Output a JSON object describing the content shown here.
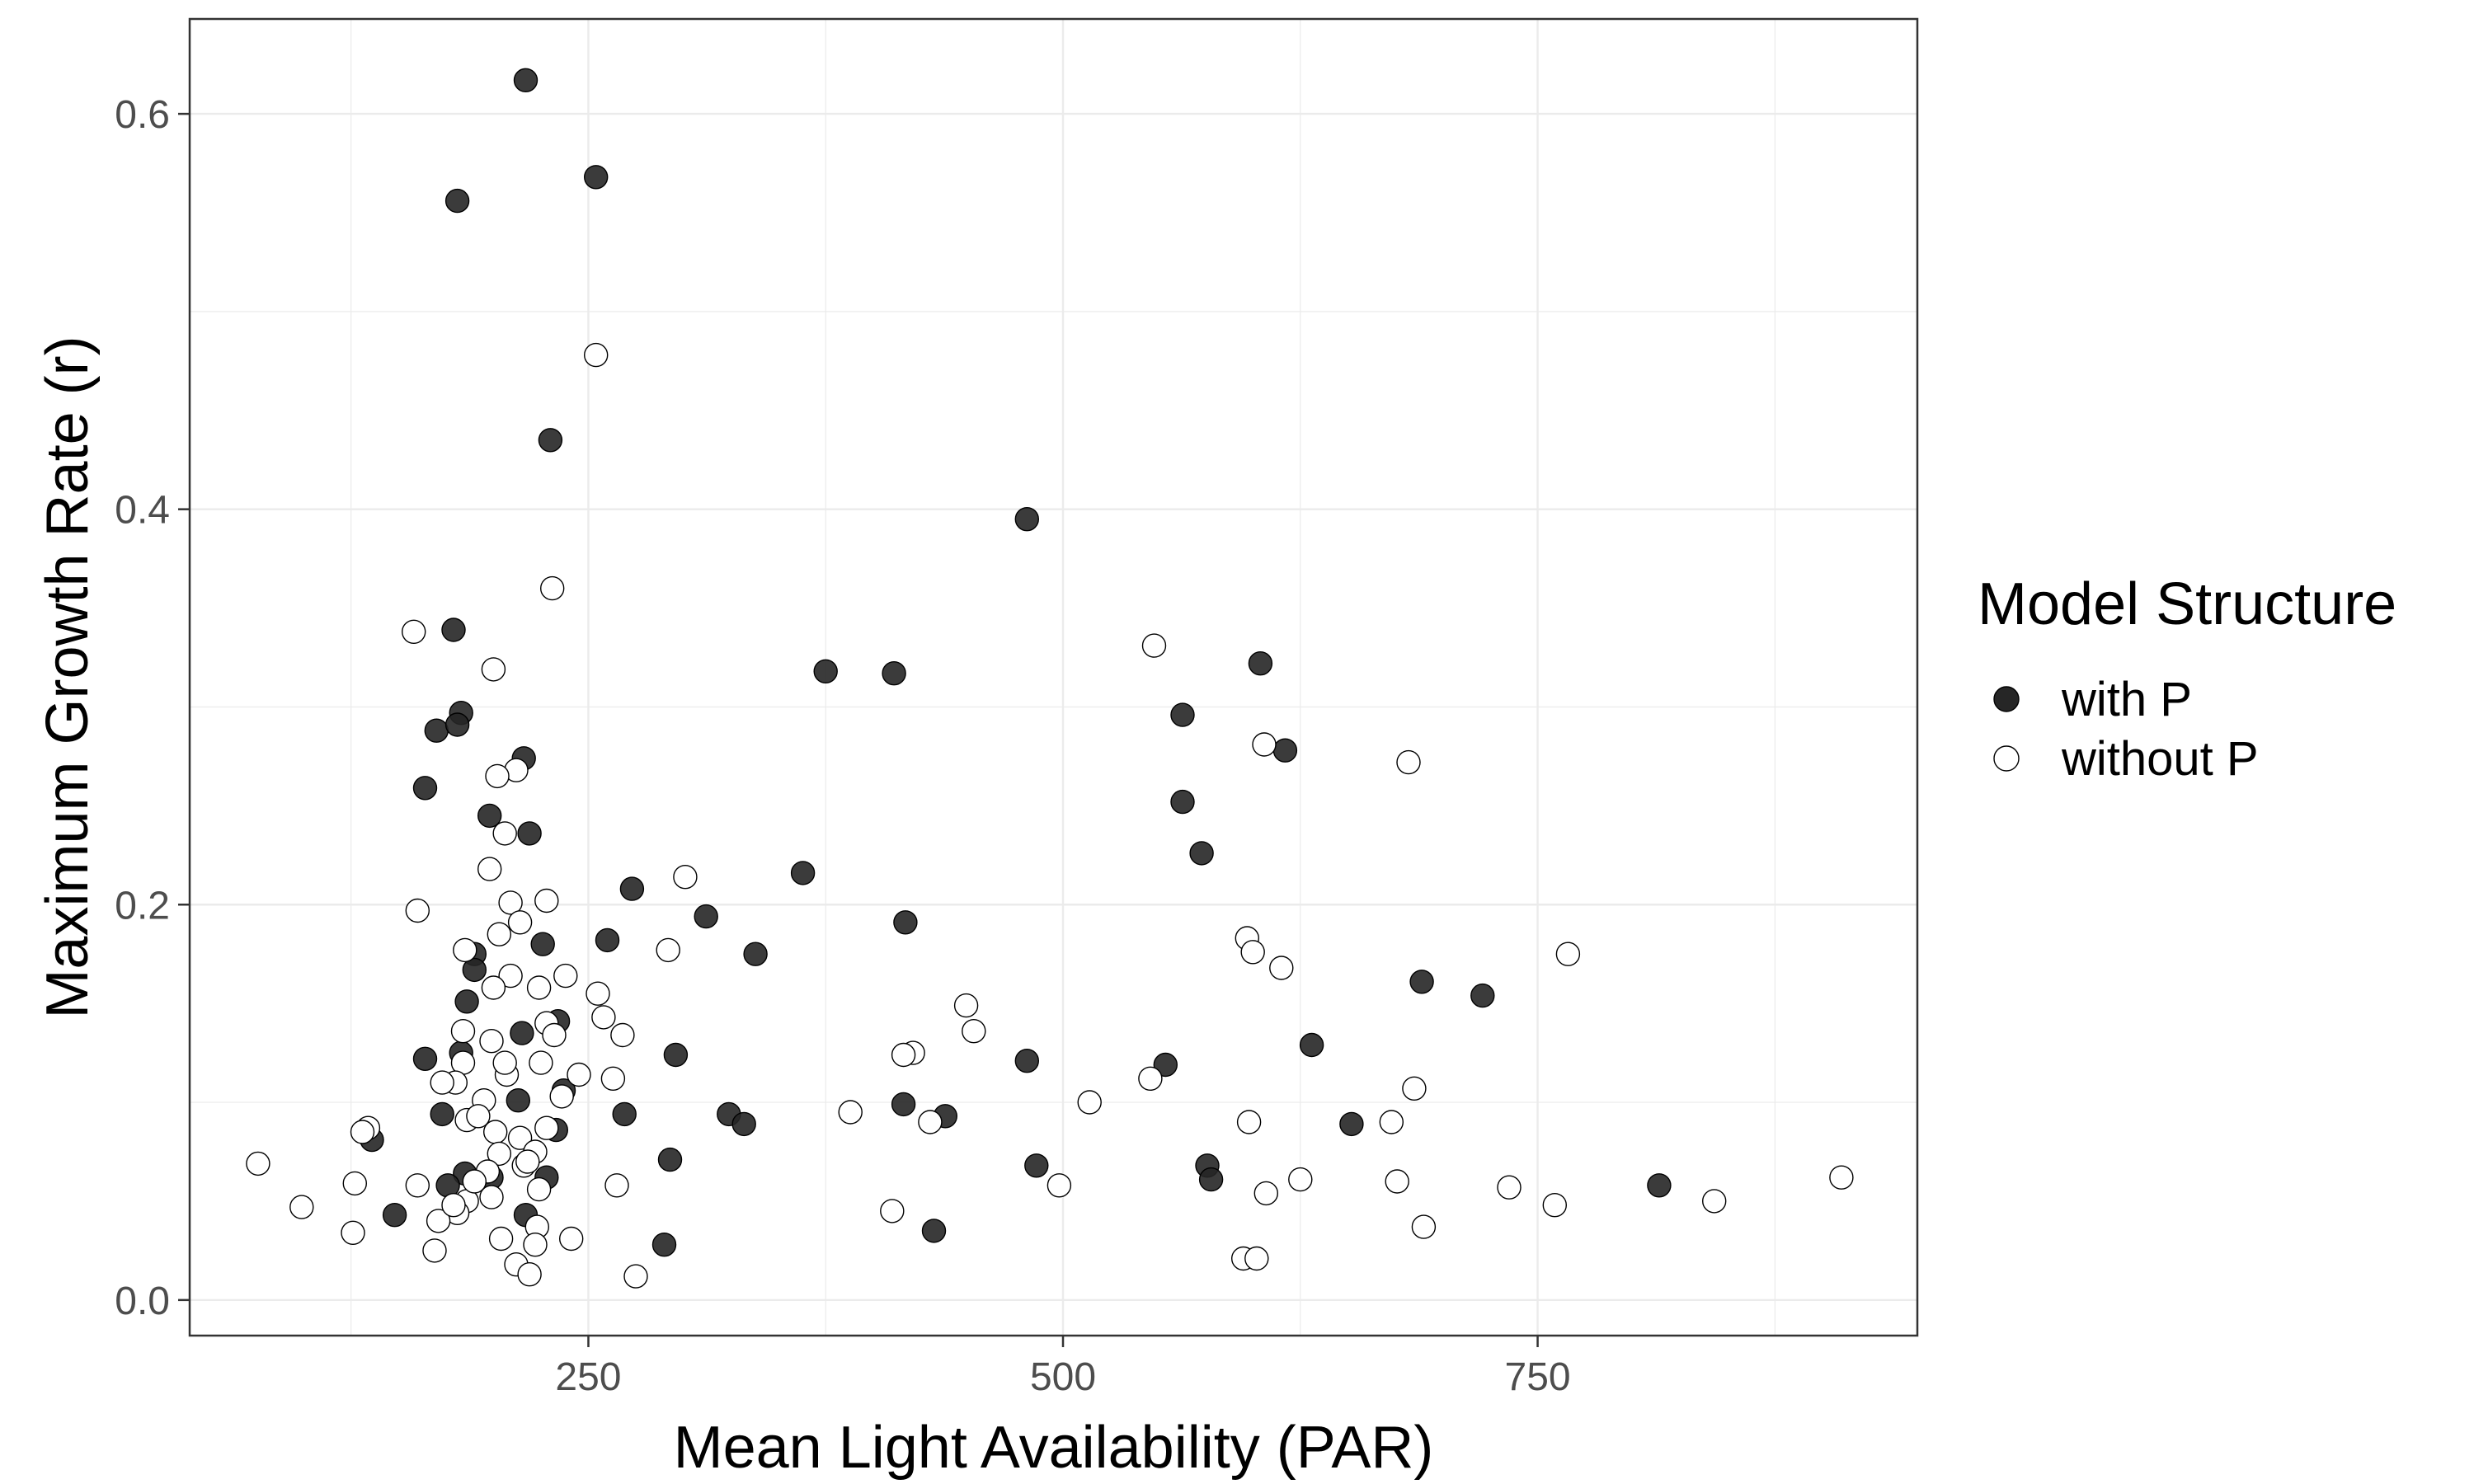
{
  "chart_data": {
    "type": "scatter",
    "xlabel": "Mean Light Availability (PAR)",
    "ylabel": "Maximum Growth Rate (r)",
    "xlim": [
      40,
      950
    ],
    "ylim": [
      -0.018,
      0.648
    ],
    "x_ticks": [
      250,
      500,
      750
    ],
    "x_tick_labels": [
      "250",
      "500",
      "750"
    ],
    "y_ticks": [
      0.0,
      0.2,
      0.4,
      0.6
    ],
    "y_tick_labels": [
      "0.0",
      "0.2",
      "0.4",
      "0.6"
    ],
    "grid": true,
    "legend": {
      "title": "Model Structure",
      "position": "right"
    },
    "colors": {
      "with_fill": "#262626",
      "without_fill": "#ffffff",
      "stroke": "#000000",
      "grid": "#ebebeb",
      "panel_border": "#333333"
    },
    "series": [
      {
        "name": "with P",
        "style": "filled",
        "points": [
          [
            217,
            0.617
          ],
          [
            181,
            0.556
          ],
          [
            254,
            0.568
          ],
          [
            230,
            0.435
          ],
          [
            481,
            0.395
          ],
          [
            179,
            0.339
          ],
          [
            375,
            0.318
          ],
          [
            411,
            0.317
          ],
          [
            604,
            0.322
          ],
          [
            183,
            0.297
          ],
          [
            563,
            0.296
          ],
          [
            170,
            0.288
          ],
          [
            181,
            0.291
          ],
          [
            617,
            0.278
          ],
          [
            216,
            0.274
          ],
          [
            164,
            0.259
          ],
          [
            563,
            0.252
          ],
          [
            198,
            0.245
          ],
          [
            219,
            0.236
          ],
          [
            573,
            0.226
          ],
          [
            363,
            0.216
          ],
          [
            273,
            0.208
          ],
          [
            312,
            0.194
          ],
          [
            417,
            0.191
          ],
          [
            260,
            0.182
          ],
          [
            226,
            0.18
          ],
          [
            338,
            0.175
          ],
          [
            190,
            0.175
          ],
          [
            190,
            0.167
          ],
          [
            689,
            0.161
          ],
          [
            721,
            0.154
          ],
          [
            186,
            0.151
          ],
          [
            234,
            0.141
          ],
          [
            215,
            0.135
          ],
          [
            631,
            0.129
          ],
          [
            183,
            0.125
          ],
          [
            296,
            0.124
          ],
          [
            481,
            0.121
          ],
          [
            164,
            0.122
          ],
          [
            554,
            0.119
          ],
          [
            237,
            0.106
          ],
          [
            213,
            0.101
          ],
          [
            416,
            0.099
          ],
          [
            173,
            0.094
          ],
          [
            269,
            0.094
          ],
          [
            324,
            0.094
          ],
          [
            438,
            0.093
          ],
          [
            332,
            0.089
          ],
          [
            652,
            0.089
          ],
          [
            233,
            0.086
          ],
          [
            136,
            0.081
          ],
          [
            293,
            0.071
          ],
          [
            486,
            0.068
          ],
          [
            576,
            0.068
          ],
          [
            185,
            0.064
          ],
          [
            199,
            0.062
          ],
          [
            228,
            0.062
          ],
          [
            578,
            0.061
          ],
          [
            176,
            0.058
          ],
          [
            814,
            0.058
          ],
          [
            148,
            0.043
          ],
          [
            217,
            0.043
          ],
          [
            432,
            0.035
          ],
          [
            290,
            0.028
          ]
        ]
      },
      {
        "name": "without P",
        "style": "open",
        "points": [
          [
            254,
            0.478
          ],
          [
            231,
            0.36
          ],
          [
            158,
            0.338
          ],
          [
            548,
            0.331
          ],
          [
            200,
            0.319
          ],
          [
            606,
            0.281
          ],
          [
            682,
            0.272
          ],
          [
            212,
            0.268
          ],
          [
            202,
            0.265
          ],
          [
            206,
            0.236
          ],
          [
            198,
            0.218
          ],
          [
            301,
            0.214
          ],
          [
            228,
            0.202
          ],
          [
            209,
            0.201
          ],
          [
            160,
            0.197
          ],
          [
            214,
            0.191
          ],
          [
            203,
            0.185
          ],
          [
            597,
            0.183
          ],
          [
            292,
            0.177
          ],
          [
            766,
            0.175
          ],
          [
            600,
            0.176
          ],
          [
            185,
            0.177
          ],
          [
            615,
            0.168
          ],
          [
            209,
            0.164
          ],
          [
            238,
            0.164
          ],
          [
            200,
            0.158
          ],
          [
            224,
            0.158
          ],
          [
            255,
            0.155
          ],
          [
            449,
            0.149
          ],
          [
            258,
            0.143
          ],
          [
            228,
            0.14
          ],
          [
            453,
            0.136
          ],
          [
            184,
            0.136
          ],
          [
            232,
            0.134
          ],
          [
            268,
            0.134
          ],
          [
            199,
            0.131
          ],
          [
            421,
            0.125
          ],
          [
            416,
            0.124
          ],
          [
            184,
            0.12
          ],
          [
            225,
            0.12
          ],
          [
            245,
            0.114
          ],
          [
            207,
            0.114
          ],
          [
            263,
            0.112
          ],
          [
            180,
            0.11
          ],
          [
            546,
            0.112
          ],
          [
            685,
            0.107
          ],
          [
            236,
            0.103
          ],
          [
            195,
            0.101
          ],
          [
            514,
            0.1
          ],
          [
            388,
            0.095
          ],
          [
            186,
            0.091
          ],
          [
            430,
            0.09
          ],
          [
            598,
            0.09
          ],
          [
            673,
            0.09
          ],
          [
            228,
            0.087
          ],
          [
            134,
            0.087
          ],
          [
            131,
            0.085
          ],
          [
            201,
            0.085
          ],
          [
            214,
            0.082
          ],
          [
            222,
            0.075
          ],
          [
            203,
            0.074
          ],
          [
            216,
            0.068
          ],
          [
            76,
            0.069
          ],
          [
            197,
            0.065
          ],
          [
            625,
            0.061
          ],
          [
            676,
            0.06
          ],
          [
            127,
            0.059
          ],
          [
            160,
            0.058
          ],
          [
            265,
            0.058
          ],
          [
            498,
            0.058
          ],
          [
            735,
            0.057
          ],
          [
            224,
            0.056
          ],
          [
            607,
            0.054
          ],
          [
            199,
            0.052
          ],
          [
            186,
            0.05
          ],
          [
            843,
            0.05
          ],
          [
            759,
            0.048
          ],
          [
            99,
            0.047
          ],
          [
            410,
            0.045
          ],
          [
            910,
            0.062
          ],
          [
            181,
            0.044
          ],
          [
            171,
            0.04
          ],
          [
            223,
            0.037
          ],
          [
            690,
            0.037
          ],
          [
            126,
            0.034
          ],
          [
            241,
            0.031
          ],
          [
            204,
            0.031
          ],
          [
            222,
            0.028
          ],
          [
            169,
            0.025
          ],
          [
            595,
            0.021
          ],
          [
            602,
            0.021
          ],
          [
            212,
            0.018
          ],
          [
            219,
            0.013
          ],
          [
            275,
            0.012
          ],
          [
            173,
            0.11
          ],
          [
            192,
            0.093
          ],
          [
            206,
            0.12
          ],
          [
            218,
            0.07
          ],
          [
            190,
            0.06
          ],
          [
            179,
            0.048
          ]
        ]
      }
    ]
  }
}
